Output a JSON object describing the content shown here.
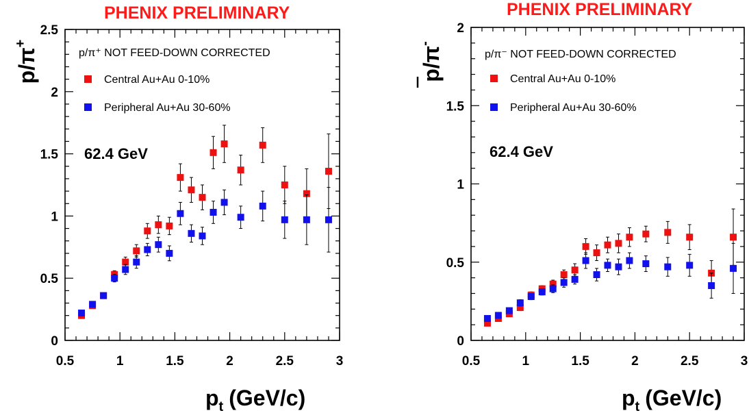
{
  "chart_data": [
    {
      "type": "scatter",
      "banner": "PHENIX PRELIMINARY",
      "ylabel_main": "p/π",
      "ylabel_sup": "+",
      "xlabel_main": "p",
      "xlabel_sub": "t",
      "xlabel_units": "(GeV/c)",
      "note": "p/π⁺ NOT FEED-DOWN CORRECTED",
      "energy_label": "62.4 GeV",
      "xlim": [
        0.5,
        3.0
      ],
      "ylim": [
        0,
        2.5
      ],
      "x_ticks": [
        "0.5",
        "1",
        "1.5",
        "2",
        "2.5",
        "3"
      ],
      "y_ticks": [
        "0",
        "0.5",
        "1",
        "1.5",
        "2",
        "2.5"
      ],
      "legend_position": "top-left",
      "series": [
        {
          "name": "Central    Au+Au 0-10%",
          "color": "#ee1111",
          "x": [
            0.65,
            0.75,
            0.85,
            0.95,
            1.05,
            1.15,
            1.25,
            1.35,
            1.45,
            1.55,
            1.65,
            1.75,
            1.85,
            1.95,
            2.1,
            2.3,
            2.5,
            2.7,
            2.9
          ],
          "y": [
            0.2,
            0.28,
            0.36,
            0.53,
            0.63,
            0.72,
            0.88,
            0.93,
            0.92,
            1.31,
            1.21,
            1.15,
            1.51,
            1.58,
            1.37,
            1.57,
            1.25,
            1.18,
            1.36
          ],
          "err": [
            0.01,
            0.015,
            0.02,
            0.03,
            0.04,
            0.05,
            0.06,
            0.07,
            0.07,
            0.11,
            0.1,
            0.1,
            0.13,
            0.15,
            0.12,
            0.14,
            0.15,
            0.2,
            0.3
          ]
        },
        {
          "name": "Peripheral Au+Au 30-60%",
          "color": "#1111ee",
          "x": [
            0.65,
            0.75,
            0.85,
            0.95,
            1.05,
            1.15,
            1.25,
            1.35,
            1.45,
            1.55,
            1.65,
            1.75,
            1.85,
            1.95,
            2.1,
            2.3,
            2.5,
            2.7,
            2.9
          ],
          "y": [
            0.22,
            0.29,
            0.36,
            0.5,
            0.57,
            0.63,
            0.73,
            0.77,
            0.7,
            1.02,
            0.86,
            0.84,
            1.03,
            1.11,
            0.99,
            1.08,
            0.97,
            0.97,
            0.97
          ],
          "err": [
            0.01,
            0.015,
            0.02,
            0.03,
            0.04,
            0.05,
            0.05,
            0.06,
            0.06,
            0.09,
            0.07,
            0.07,
            0.09,
            0.1,
            0.09,
            0.12,
            0.15,
            0.2,
            0.26
          ]
        }
      ]
    },
    {
      "type": "scatter",
      "banner": "PHENIX PRELIMINARY",
      "ylabel_main": "p/π",
      "ylabel_sup": "-",
      "xlabel_main": "p",
      "xlabel_sub": "t",
      "xlabel_units": "(GeV/c)",
      "note": "p/π⁻ NOT FEED-DOWN CORRECTED",
      "energy_label": "62.4 GeV",
      "xlim": [
        0.5,
        3.0
      ],
      "ylim": [
        0,
        2.0
      ],
      "x_ticks": [
        "0.5",
        "1",
        "1.5",
        "2",
        "2.5",
        "3"
      ],
      "y_ticks": [
        "0",
        "0.5",
        "1",
        "1.5",
        "2"
      ],
      "legend_position": "top-left",
      "series": [
        {
          "name": "Central    Au+Au 0-10%",
          "color": "#ee1111",
          "x": [
            0.65,
            0.75,
            0.85,
            0.95,
            1.05,
            1.15,
            1.25,
            1.35,
            1.45,
            1.55,
            1.65,
            1.75,
            1.85,
            1.95,
            2.1,
            2.3,
            2.5,
            2.7,
            2.9
          ],
          "y": [
            0.11,
            0.14,
            0.17,
            0.21,
            0.29,
            0.33,
            0.36,
            0.42,
            0.45,
            0.6,
            0.56,
            0.61,
            0.62,
            0.66,
            0.68,
            0.69,
            0.66,
            0.43,
            0.66
          ],
          "err": [
            0.01,
            0.01,
            0.015,
            0.02,
            0.02,
            0.02,
            0.025,
            0.03,
            0.04,
            0.05,
            0.05,
            0.05,
            0.06,
            0.06,
            0.05,
            0.07,
            0.08,
            0.08,
            0.18
          ]
        },
        {
          "name": "Peripheral Au+Au 30-60%",
          "color": "#1111ee",
          "x": [
            0.65,
            0.75,
            0.85,
            0.95,
            1.05,
            1.15,
            1.25,
            1.35,
            1.45,
            1.55,
            1.65,
            1.75,
            1.85,
            1.95,
            2.1,
            2.3,
            2.5,
            2.7,
            2.9
          ],
          "y": [
            0.14,
            0.16,
            0.19,
            0.24,
            0.28,
            0.31,
            0.33,
            0.37,
            0.39,
            0.51,
            0.42,
            0.48,
            0.47,
            0.51,
            0.49,
            0.47,
            0.48,
            0.35,
            0.46
          ],
          "err": [
            0.01,
            0.01,
            0.015,
            0.02,
            0.02,
            0.02,
            0.025,
            0.03,
            0.03,
            0.05,
            0.04,
            0.04,
            0.05,
            0.05,
            0.05,
            0.06,
            0.07,
            0.08,
            0.16
          ]
        }
      ]
    }
  ]
}
